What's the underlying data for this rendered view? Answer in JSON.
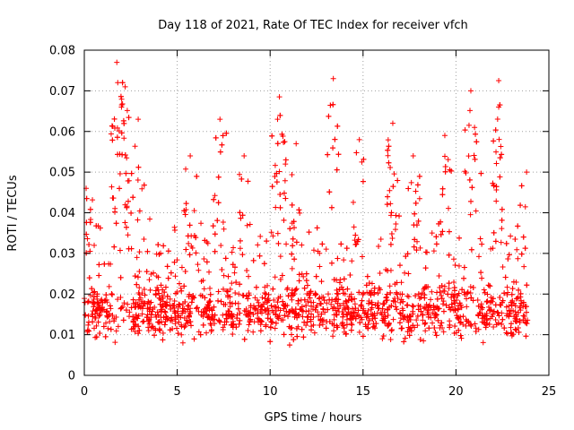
{
  "chart_data": {
    "type": "scatter",
    "title": "Day 118 of 2021, Rate Of TEC Index for receiver vfch",
    "xlabel": "GPS time / hours",
    "ylabel": "ROTI / TECUs",
    "xlim": [
      0,
      25
    ],
    "ylim": [
      0,
      0.08
    ],
    "xticks": [
      0,
      5,
      10,
      15,
      20,
      25
    ],
    "xtick_labels": [
      "0",
      "5",
      "10",
      "15",
      "20",
      "25"
    ],
    "yticks": [
      0,
      0.01,
      0.02,
      0.03,
      0.04,
      0.05,
      0.06,
      0.07,
      0.08
    ],
    "ytick_labels": [
      "0",
      "0.01",
      "0.02",
      "0.03",
      "0.04",
      "0.05",
      "0.06",
      "0.07",
      "0.08"
    ],
    "grid": true,
    "marker": "+",
    "color": "#ff0000",
    "series": [
      {
        "name": "ROTI",
        "data_range_x": [
          0,
          24
        ],
        "baseline_typical": 0.016,
        "peaks": [
          {
            "x": 0.1,
            "y": 0.046
          },
          {
            "x": 1.75,
            "y": 0.077
          },
          {
            "x": 1.8,
            "y": 0.072
          },
          {
            "x": 2.2,
            "y": 0.071
          },
          {
            "x": 2.0,
            "y": 0.066
          },
          {
            "x": 2.9,
            "y": 0.063
          },
          {
            "x": 5.7,
            "y": 0.054
          },
          {
            "x": 7.3,
            "y": 0.063
          },
          {
            "x": 8.6,
            "y": 0.054
          },
          {
            "x": 10.5,
            "y": 0.0685
          },
          {
            "x": 10.4,
            "y": 0.063
          },
          {
            "x": 11.4,
            "y": 0.057
          },
          {
            "x": 13.4,
            "y": 0.073
          },
          {
            "x": 14.8,
            "y": 0.058
          },
          {
            "x": 16.6,
            "y": 0.062
          },
          {
            "x": 17.7,
            "y": 0.054
          },
          {
            "x": 19.4,
            "y": 0.059
          },
          {
            "x": 20.8,
            "y": 0.07
          },
          {
            "x": 21.0,
            "y": 0.061
          },
          {
            "x": 22.3,
            "y": 0.0725
          },
          {
            "x": 22.3,
            "y": 0.066
          },
          {
            "x": 23.8,
            "y": 0.05
          }
        ]
      }
    ]
  }
}
